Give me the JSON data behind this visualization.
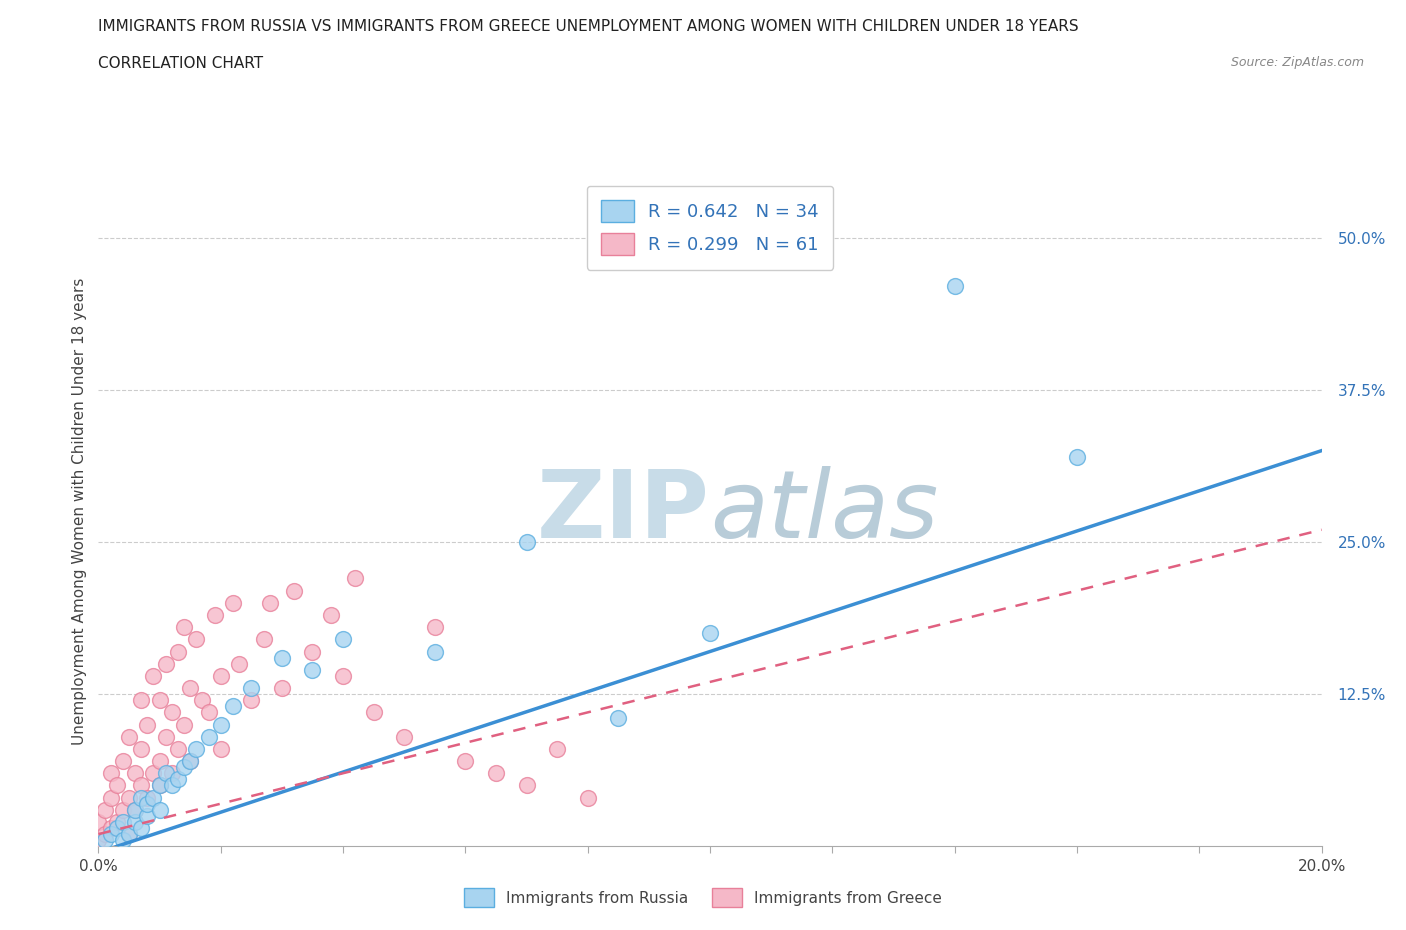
{
  "title_line1": "IMMIGRANTS FROM RUSSIA VS IMMIGRANTS FROM GREECE UNEMPLOYMENT AMONG WOMEN WITH CHILDREN UNDER 18 YEARS",
  "title_line2": "CORRELATION CHART",
  "source_text": "Source: ZipAtlas.com",
  "ylabel": "Unemployment Among Women with Children Under 18 years",
  "xlim": [
    0.0,
    0.2
  ],
  "ylim": [
    0.0,
    0.55
  ],
  "ytick_labels": [
    "12.5%",
    "25.0%",
    "37.5%",
    "50.0%"
  ],
  "ytick_vals": [
    0.125,
    0.25,
    0.375,
    0.5
  ],
  "watermark": "ZIPatlas",
  "color_russia": "#a8d4f0",
  "color_russia_edge": "#5baee0",
  "color_russia_line": "#3b8fd4",
  "color_greece": "#f5b8c8",
  "color_greece_edge": "#e8809a",
  "color_greece_line": "#e06080",
  "color_text_blue": "#3373b8",
  "legend_label_russia": "R = 0.642   N = 34",
  "legend_label_greece": "R = 0.299   N = 61",
  "russia_x": [
    0.001,
    0.002,
    0.003,
    0.004,
    0.004,
    0.005,
    0.006,
    0.006,
    0.007,
    0.007,
    0.008,
    0.008,
    0.009,
    0.01,
    0.01,
    0.011,
    0.012,
    0.013,
    0.014,
    0.015,
    0.016,
    0.018,
    0.02,
    0.022,
    0.025,
    0.03,
    0.035,
    0.04,
    0.055,
    0.07,
    0.085,
    0.1,
    0.14,
    0.16
  ],
  "russia_y": [
    0.005,
    0.01,
    0.015,
    0.005,
    0.02,
    0.01,
    0.02,
    0.03,
    0.015,
    0.04,
    0.025,
    0.035,
    0.04,
    0.03,
    0.05,
    0.06,
    0.05,
    0.055,
    0.065,
    0.07,
    0.08,
    0.09,
    0.1,
    0.115,
    0.13,
    0.155,
    0.145,
    0.17,
    0.16,
    0.25,
    0.105,
    0.175,
    0.46,
    0.32
  ],
  "greece_x": [
    0.0,
    0.0,
    0.001,
    0.001,
    0.002,
    0.002,
    0.002,
    0.003,
    0.003,
    0.004,
    0.004,
    0.005,
    0.005,
    0.005,
    0.006,
    0.006,
    0.007,
    0.007,
    0.007,
    0.008,
    0.008,
    0.009,
    0.009,
    0.01,
    0.01,
    0.01,
    0.011,
    0.011,
    0.012,
    0.012,
    0.013,
    0.013,
    0.014,
    0.014,
    0.015,
    0.015,
    0.016,
    0.017,
    0.018,
    0.019,
    0.02,
    0.02,
    0.022,
    0.023,
    0.025,
    0.027,
    0.028,
    0.03,
    0.032,
    0.035,
    0.038,
    0.04,
    0.042,
    0.045,
    0.05,
    0.055,
    0.06,
    0.065,
    0.07,
    0.075,
    0.08
  ],
  "greece_y": [
    0.005,
    0.02,
    0.01,
    0.03,
    0.015,
    0.04,
    0.06,
    0.02,
    0.05,
    0.03,
    0.07,
    0.01,
    0.04,
    0.09,
    0.03,
    0.06,
    0.05,
    0.08,
    0.12,
    0.04,
    0.1,
    0.06,
    0.14,
    0.07,
    0.05,
    0.12,
    0.09,
    0.15,
    0.06,
    0.11,
    0.08,
    0.16,
    0.1,
    0.18,
    0.07,
    0.13,
    0.17,
    0.12,
    0.11,
    0.19,
    0.08,
    0.14,
    0.2,
    0.15,
    0.12,
    0.17,
    0.2,
    0.13,
    0.21,
    0.16,
    0.19,
    0.14,
    0.22,
    0.11,
    0.09,
    0.18,
    0.07,
    0.06,
    0.05,
    0.08,
    0.04
  ]
}
